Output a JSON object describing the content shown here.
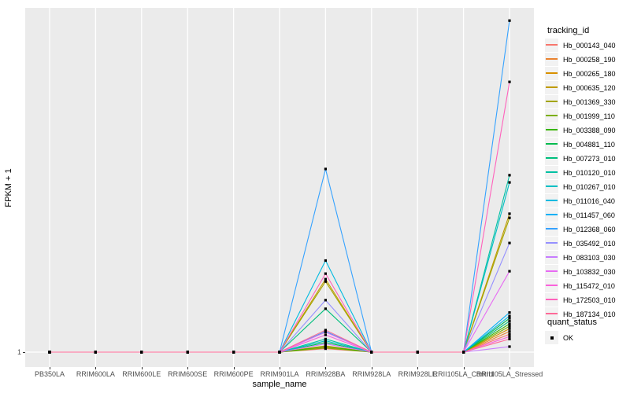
{
  "figure": {
    "background": "#ffffff",
    "panel_background": "#EBEBEB",
    "gridline_color": "#ffffff",
    "marker_color": "#000000",
    "tick_text_color": "#4d4d4d"
  },
  "y_axis": {
    "label": "FPKM + 1",
    "tick_labels": [
      "1"
    ]
  },
  "x_axis": {
    "label": "sample_name"
  },
  "legend": {
    "tracking_title": "tracking_id",
    "quant_title": "quant_status",
    "quant_items": [
      {
        "label": "OK",
        "marker": "black-square"
      }
    ]
  },
  "chart_data": {
    "type": "line",
    "title": "",
    "xlabel": "sample_name",
    "ylabel": "FPKM + 1",
    "y_tick_labels": [
      "1"
    ],
    "grid": "major-vertical-white, baseline-horizontal-white",
    "legend_position": "right",
    "point_marker": "small black square (quant_status = OK) at every sample for every series",
    "value_note": "y axis shows only tick '1' at the baseline; series values below are expressed as fraction of panel height above the FPKM+1=1 baseline (0 = baseline, 1 = panel top), estimated from pixels",
    "categories": [
      "PB350LA",
      "RRIM600LA",
      "RRIM600LE",
      "RRIM600SE",
      "RRIM600PE",
      "RRIM901LA",
      "RRIM928BA",
      "RRIM928LA",
      "RRIM928LE",
      "RRII105LA_Control",
      "RRII105LA_Stressed"
    ],
    "series": [
      {
        "name": "Hb_000143_040",
        "color": "#F8766D",
        "values": [
          0,
          0,
          0,
          0,
          0,
          0,
          0.01,
          0,
          0,
          0,
          0.052
        ]
      },
      {
        "name": "Hb_000258_190",
        "color": "#EA8331",
        "values": [
          0,
          0,
          0,
          0,
          0,
          0,
          0.014,
          0,
          0,
          0,
          0.06
        ]
      },
      {
        "name": "Hb_000265_180",
        "color": "#D89000",
        "values": [
          0,
          0,
          0,
          0,
          0,
          0,
          0.018,
          0,
          0,
          0,
          0.068
        ]
      },
      {
        "name": "Hb_000635_120",
        "color": "#C09B00",
        "values": [
          0,
          0,
          0,
          0,
          0,
          0,
          0.212,
          0,
          0,
          0,
          0.402
        ]
      },
      {
        "name": "Hb_001369_330",
        "color": "#A3A500",
        "values": [
          0,
          0,
          0,
          0,
          0,
          0,
          0.205,
          0,
          0,
          0,
          0.39
        ]
      },
      {
        "name": "Hb_001999_110",
        "color": "#7CAE00",
        "values": [
          0,
          0,
          0,
          0,
          0,
          0,
          0.012,
          0,
          0,
          0,
          0.075
        ]
      },
      {
        "name": "Hb_003388_090",
        "color": "#39B600",
        "values": [
          0,
          0,
          0,
          0,
          0,
          0,
          0.016,
          0,
          0,
          0,
          0.082
        ]
      },
      {
        "name": "Hb_004881_110",
        "color": "#00BB4E",
        "values": [
          0,
          0,
          0,
          0,
          0,
          0,
          0.028,
          0,
          0,
          0,
          0.098
        ]
      },
      {
        "name": "Hb_007273_010",
        "color": "#00BF7D",
        "values": [
          0,
          0,
          0,
          0,
          0,
          0,
          0.126,
          0,
          0,
          0,
          0.09
        ]
      },
      {
        "name": "Hb_010120_010",
        "color": "#00C1A3",
        "values": [
          0,
          0,
          0,
          0,
          0,
          0,
          0.038,
          0,
          0,
          0,
          0.514
        ]
      },
      {
        "name": "Hb_010267_010",
        "color": "#00BFC4",
        "values": [
          0,
          0,
          0,
          0,
          0,
          0,
          0.033,
          0,
          0,
          0,
          0.493
        ]
      },
      {
        "name": "Hb_011016_040",
        "color": "#00BAE0",
        "values": [
          0,
          0,
          0,
          0,
          0,
          0,
          0.266,
          0,
          0,
          0,
          0.105
        ]
      },
      {
        "name": "Hb_011457_060",
        "color": "#00B0F6",
        "values": [
          0,
          0,
          0,
          0,
          0,
          0,
          0.06,
          0,
          0,
          0,
          0.115
        ]
      },
      {
        "name": "Hb_012368_060",
        "color": "#35A2FF",
        "values": [
          0,
          0,
          0,
          0,
          0,
          0,
          0.532,
          0,
          0,
          0,
          0.963
        ]
      },
      {
        "name": "Hb_035492_010",
        "color": "#9590FF",
        "values": [
          0,
          0,
          0,
          0,
          0,
          0,
          0.151,
          0,
          0,
          0,
          0.317
        ]
      },
      {
        "name": "Hb_083103_030",
        "color": "#C77CFF",
        "values": [
          0,
          0,
          0,
          0,
          0,
          0,
          0.024,
          0,
          0,
          0,
          0.016
        ]
      },
      {
        "name": "Hb_103832_030",
        "color": "#E76BF3",
        "values": [
          0,
          0,
          0,
          0,
          0,
          0,
          0.058,
          0,
          0,
          0,
          0.235
        ]
      },
      {
        "name": "Hb_115472_010",
        "color": "#FA62DB",
        "values": [
          0,
          0,
          0,
          0,
          0,
          0,
          0.05,
          0,
          0,
          0,
          0.045
        ]
      },
      {
        "name": "Hb_172503_010",
        "color": "#FF62BC",
        "values": [
          0,
          0,
          0,
          0,
          0,
          0,
          0.228,
          0,
          0,
          0,
          0.785
        ]
      },
      {
        "name": "Hb_187134_010",
        "color": "#FF6A98",
        "values": [
          0,
          0,
          0,
          0,
          0,
          0,
          0.064,
          0,
          0,
          0,
          0.038
        ]
      }
    ]
  }
}
